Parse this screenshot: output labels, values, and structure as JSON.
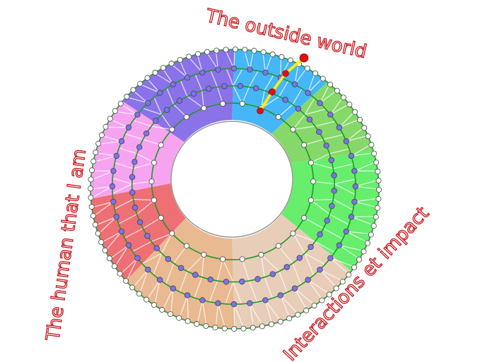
{
  "labels": {
    "top": "The outside world",
    "left": "The human that I am",
    "right": "Interactions et impact"
  },
  "sectors": [
    {
      "from": -90,
      "to": -50,
      "color": "#45b6f7"
    },
    {
      "from": -50,
      "to": -16,
      "color": "#86d86a"
    },
    {
      "from": -16,
      "to": 36,
      "color": "#66ee6c"
    },
    {
      "from": 36,
      "to": 90,
      "color": "#e8cdb8"
    },
    {
      "from": 90,
      "to": 139,
      "color": "#e9b991"
    },
    {
      "from": 139,
      "to": 176,
      "color": "#ee6f74"
    },
    {
      "from": 176,
      "to": 219,
      "color": "#f7a4f0"
    },
    {
      "from": 219,
      "to": 270,
      "color": "#8a72e8"
    }
  ],
  "colors": {
    "ring_line": "#1f9a2a",
    "inner_node": "#7b72ee",
    "outer_node": "#ffffff",
    "path": "#f5ee10",
    "path_node": "#e01010",
    "label": "#c8171c"
  }
}
